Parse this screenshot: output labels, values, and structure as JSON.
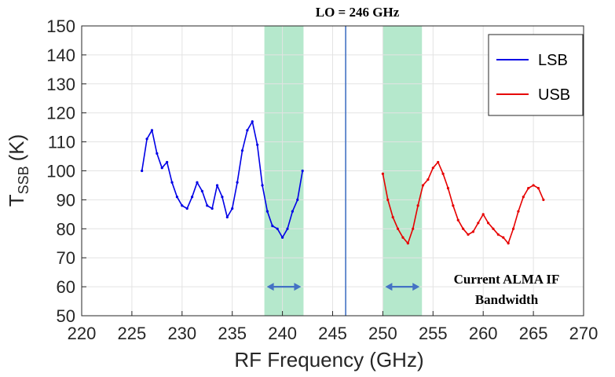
{
  "chart_data": {
    "type": "line",
    "title": "LO = 246 GHz",
    "xlabel": "RF Frequency (GHz)",
    "ylabel_main": "T",
    "ylabel_sub": "SSB",
    "ylabel_unit": "(K)",
    "xlim": [
      220,
      270
    ],
    "ylim": [
      50,
      150
    ],
    "xticks": [
      "220",
      "225",
      "230",
      "235",
      "240",
      "245",
      "250",
      "255",
      "260",
      "265",
      "270"
    ],
    "yticks": [
      "50",
      "60",
      "70",
      "80",
      "90",
      "100",
      "110",
      "120",
      "130",
      "140",
      "150"
    ],
    "grid": true,
    "legend_position": "top-right",
    "lo_frequency": 246.3,
    "lo_color": "#4472c4",
    "if_bands": [
      {
        "from": 238.2,
        "to": 242.1,
        "color": "#a8e4c3"
      },
      {
        "from": 250.0,
        "to": 253.9,
        "color": "#a8e4c3"
      }
    ],
    "arrow_color": "#4472c4",
    "annotation": [
      "Current ALMA IF",
      "Bandwidth"
    ],
    "series": [
      {
        "name": "LSB",
        "color": "#0000e6",
        "x": [
          226,
          226.5,
          227,
          227.5,
          228,
          228.5,
          229,
          229.5,
          230,
          230.5,
          231,
          231.5,
          232,
          232.5,
          233,
          233.5,
          234,
          234.5,
          235,
          235.5,
          236,
          236.5,
          237,
          237.5,
          238,
          238.5,
          239,
          239.5,
          240,
          240.5,
          241,
          241.5,
          242
        ],
        "y": [
          100,
          111,
          114,
          106,
          101,
          103,
          96,
          91,
          88,
          87,
          91,
          96,
          93,
          88,
          87,
          95,
          91,
          84,
          87,
          96,
          107,
          114,
          117,
          109,
          95,
          86,
          81,
          80,
          77,
          80,
          86,
          90,
          100
        ]
      },
      {
        "name": "USB",
        "color": "#e60000",
        "x": [
          250,
          250.5,
          251,
          251.5,
          252,
          252.5,
          253,
          253.5,
          254,
          254.5,
          255,
          255.5,
          256,
          256.5,
          257,
          257.5,
          258,
          258.5,
          259,
          259.5,
          260,
          260.5,
          261,
          261.5,
          262,
          262.5,
          263,
          263.5,
          264,
          264.5,
          265,
          265.5,
          266
        ],
        "y": [
          99,
          90,
          84,
          80,
          77,
          75,
          80,
          88,
          95,
          97,
          101,
          103,
          99,
          94,
          88,
          83,
          80,
          78,
          79,
          82,
          85,
          82,
          80,
          78,
          77,
          75,
          80,
          86,
          91,
          94,
          95,
          94,
          90
        ]
      }
    ]
  }
}
